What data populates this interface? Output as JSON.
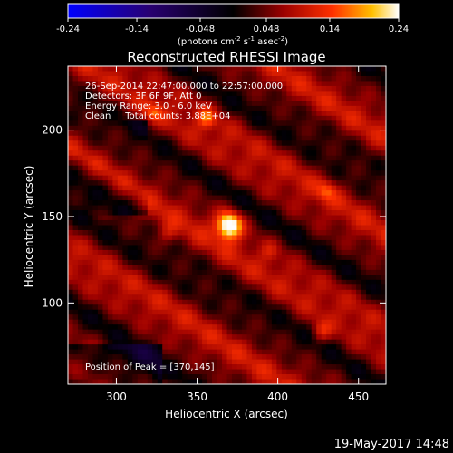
{
  "chart_data": {
    "type": "heatmap",
    "title": "Reconstructed RHESSI Image",
    "colorbar": {
      "ticks": [
        -0.24,
        -0.14,
        -0.048,
        0.048,
        0.14,
        0.24
      ],
      "tick_labels": [
        "-0.24",
        "-0.14",
        "-0.048",
        "0.048",
        "0.14",
        "0.24"
      ],
      "range": [
        -0.24,
        0.24
      ],
      "units_line": {
        "pre": "(photons cm",
        "sup1": "-2",
        "mid1": " s",
        "sup2": "-1",
        "mid2": " asec",
        "sup3": "-2",
        "post": ")"
      }
    },
    "xlabel": "Heliocentric X (arcsec)",
    "ylabel": "Heliocentric Y (arcsec)",
    "xlim": [
      270,
      467
    ],
    "ylim": [
      53,
      237
    ],
    "xticks": [
      300,
      350,
      400,
      450
    ],
    "xtick_labels": [
      "300",
      "350",
      "400",
      "450"
    ],
    "yticks": [
      100,
      150,
      200
    ],
    "ytick_labels": [
      "100",
      "150",
      "200"
    ],
    "info_lines": [
      "26-Sep-2014 22:47:00.000 to 22:57:00.000",
      "Detectors: 3F 6F 9F, Att 0",
      "Energy Range: 3.0 - 6.0 keV",
      "Clean     Total counts: 3.88E+04"
    ],
    "peak_label": "Position of Peak = [370,145]",
    "peak": {
      "x": 370,
      "y": 145,
      "value": 0.24
    },
    "secondary_sources": [
      {
        "x": 356,
        "y": 207,
        "value": 0.14
      },
      {
        "x": 323,
        "y": 210,
        "value": 0.12
      },
      {
        "x": 430,
        "y": 165,
        "value": 0.1
      },
      {
        "x": 427,
        "y": 83,
        "value": 0.12
      },
      {
        "x": 332,
        "y": 140,
        "value": 0.08
      },
      {
        "x": 395,
        "y": 130,
        "value": 0.06
      }
    ]
  },
  "footer": {
    "date": "19-May-2017 14:48"
  }
}
